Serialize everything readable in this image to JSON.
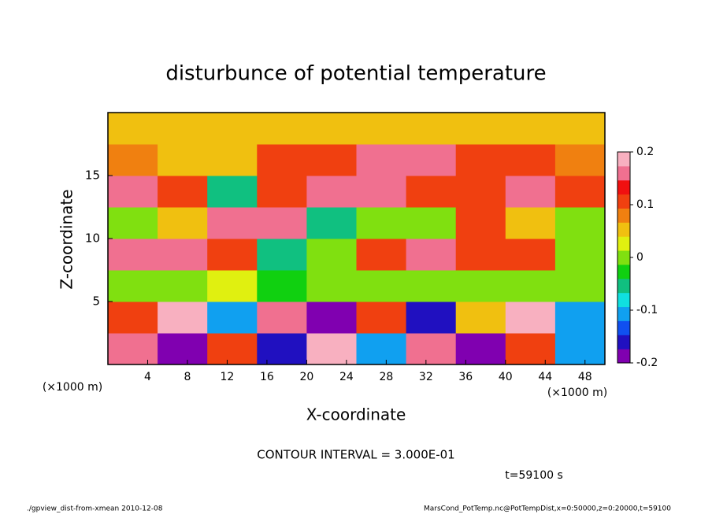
{
  "chart_data": {
    "type": "heatmap",
    "title": "disturbunce of potential temperature",
    "x_label": "X-coordinate",
    "y_label": "Z-coordinate",
    "x_unit": "(×1000 m)",
    "y_unit": "(×1000 m)",
    "xlim": [
      0,
      50
    ],
    "xticks": [
      4,
      8,
      12,
      16,
      20,
      24,
      28,
      32,
      36,
      40,
      44,
      48
    ],
    "ylim": [
      0,
      20
    ],
    "yticks": [
      5,
      10,
      15
    ],
    "z": [
      [
        0.15,
        -0.2,
        0.1,
        -0.15,
        0.2,
        -0.1,
        0.15,
        -0.2,
        0.1,
        -0.1
      ],
      [
        0.1,
        0.2,
        -0.1,
        0.15,
        -0.2,
        0.1,
        -0.15,
        0.05,
        0.2,
        -0.1
      ],
      [
        0,
        0,
        0.02,
        -0.02,
        0,
        0,
        0,
        0.01,
        0,
        0
      ],
      [
        0.15,
        0.15,
        0.12,
        -0.05,
        0,
        0.1,
        0.15,
        0.12,
        0.1,
        0
      ],
      [
        0,
        0.05,
        0.15,
        0.15,
        -0.05,
        0,
        0,
        0.1,
        0.05,
        0
      ],
      [
        0.15,
        0.1,
        -0.05,
        0.12,
        0.15,
        0.15,
        0.12,
        0.1,
        0.15,
        0.12
      ],
      [
        0.08,
        0.05,
        0.05,
        0.1,
        0.12,
        0.15,
        0.15,
        0.12,
        0.1,
        0.08
      ],
      [
        0.05,
        0.06,
        0.06,
        0.06,
        0.06,
        0.06,
        0.06,
        0.06,
        0.06,
        0.06
      ]
    ],
    "clim": [
      -0.2,
      0.2
    ],
    "cticks": [
      -0.2,
      -0.1,
      0,
      0.1,
      0.2
    ],
    "colors": [
      "#8000b0",
      "#2010c0",
      "#1050f0",
      "#10a0f0",
      "#10e0e0",
      "#10c080",
      "#10d010",
      "#80e010",
      "#e0f010",
      "#f0c010",
      "#f08010",
      "#f04010",
      "#f01010",
      "#f07090",
      "#f8b0c0"
    ],
    "contour_interval": "CONTOUR INTERVAL = 3.000E-01",
    "time_label": "t=59100 s",
    "footer_left": "./gpview_dist-from-xmean  2010-12-08",
    "footer_right": "MarsCond_PotTemp.nc@PotTempDist,x=0:50000,z=0:20000,t=59100"
  }
}
